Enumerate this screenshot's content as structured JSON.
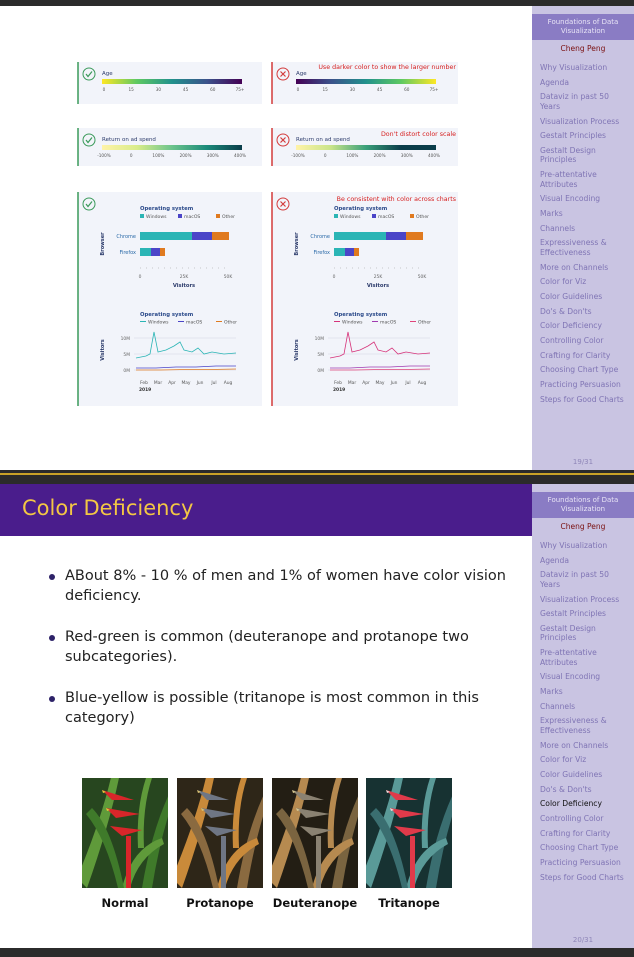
{
  "sidebar": {
    "title": "Foundations of Data Visualization",
    "author": "Cheng Peng",
    "items": [
      "Why Visualization",
      "Agenda",
      "Dataviz in past 50 Years",
      "Visualization Process",
      "Gestalt Principles",
      "Gestalt Design Principles",
      "Pre-attentative Attributes",
      "Visual Encoding",
      "Marks",
      "Channels",
      "Expressiveness & Effectiveness",
      "More on Channels",
      "Color for Viz",
      "Color Guidelines",
      "Do's & Don'ts",
      "Color Deficiency",
      "Controlling Color",
      "Crafting for Clarity",
      "Choosing Chart Type",
      "Practicing Persuasion",
      "Steps for Good Charts"
    ]
  },
  "slides": [
    {
      "page": "19/31",
      "figure": {
        "scales": [
          {
            "label": "Age",
            "ticks": [
              "0",
              "15",
              "30",
              "45",
              "60",
              "75+"
            ],
            "note": "Use darker color to show the larger number"
          },
          {
            "label": "Return on ad spend",
            "ticks": [
              "-100%",
              "0",
              "100%",
              "200%",
              "300%",
              "400%"
            ],
            "note": "Don't distort color scale"
          }
        ],
        "charts": {
          "note": "Be consistent with color across charts",
          "legend_title": "Operating system",
          "legend": [
            "Windows",
            "macOS",
            "Other"
          ],
          "bar_axis_title": "Browser",
          "categories": [
            "Chrome",
            "Firefox"
          ],
          "bar_ticks": [
            "0",
            "25K",
            "50K"
          ],
          "bar_value_title": "Visitors",
          "line_axis_title": "Visitors",
          "line_ticks": [
            "10M",
            "5M",
            "0M"
          ],
          "months": [
            "Feb",
            "Mar",
            "Apr",
            "May",
            "Jun",
            "Jul",
            "Aug"
          ],
          "year": "2019"
        }
      }
    },
    {
      "page": "20/31",
      "title": "Color Deficiency",
      "active": "Color Deficiency",
      "bullets": [
        "ABout 8% - 10 % of men and 1% of women have color vision deficiency.",
        "Red-green is common (deuteranope and protanope two subcategories).",
        "Blue-yellow is possible (tritanope is most common in this category)"
      ],
      "images": [
        "Normal",
        "Protanope",
        "Deuteranope",
        "Tritanope"
      ]
    }
  ]
}
